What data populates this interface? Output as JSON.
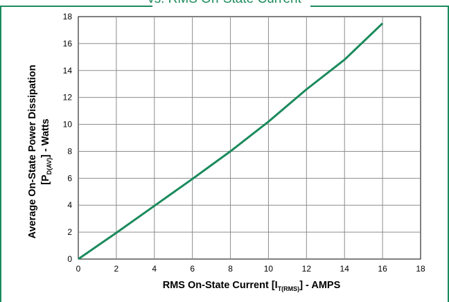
{
  "title": "vs. RMS On-State Current",
  "chart_data": {
    "type": "line",
    "xlabel_main": "RMS On-State Current [I",
    "xlabel_sub": "T(RMS)",
    "xlabel_end": "] - AMPS",
    "ylabel_line1": "Average On-State Power Dissipation",
    "ylabel_line2_main": "[P",
    "ylabel_line2_sub": "D(AV)",
    "ylabel_line2_end": "] - Watts",
    "xlim": [
      0,
      18
    ],
    "ylim": [
      0,
      18
    ],
    "xticks": [
      "0",
      "2",
      "4",
      "6",
      "8",
      "10",
      "12",
      "14",
      "16",
      "18"
    ],
    "yticks": [
      "0",
      "2",
      "4",
      "6",
      "8",
      "10",
      "12",
      "14",
      "16",
      "18"
    ],
    "grid": true,
    "line_color": "#1a8a5c",
    "series": [
      {
        "x": [
          0,
          2,
          4,
          6,
          8,
          10,
          12,
          14,
          16
        ],
        "y": [
          0,
          1.95,
          3.95,
          5.95,
          8.0,
          10.2,
          12.6,
          14.8,
          17.5
        ]
      }
    ]
  }
}
